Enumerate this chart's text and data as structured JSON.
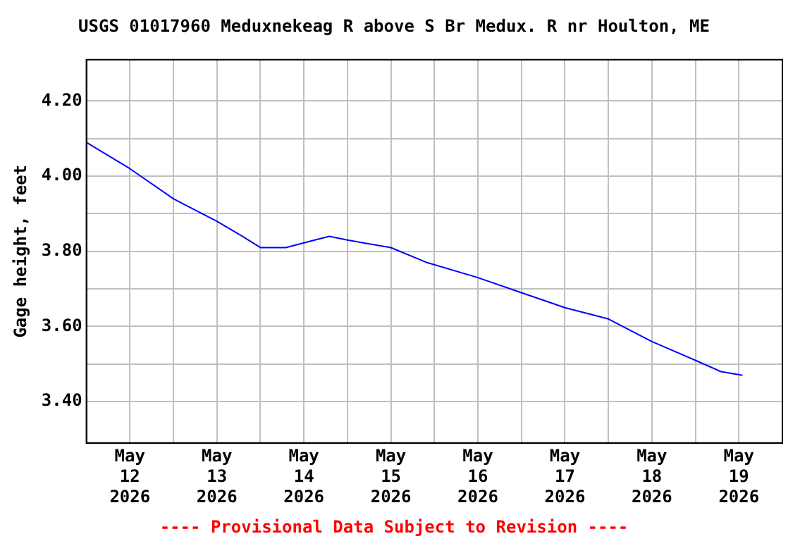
{
  "chart_data": {
    "type": "line",
    "title": "USGS 01017960 Meduxnekeag R above S Br Medux. R nr Houlton, ME",
    "ylabel": "Gage height, feet",
    "annotations": [
      "---- Provisional Data Subject to Revision ----"
    ],
    "x": [
      "2026-05-11T12:00",
      "2026-05-12",
      "2026-05-12T12:00",
      "2026-05-13",
      "2026-05-13T07:00",
      "2026-05-13T12:00",
      "2026-05-13T19:00",
      "2026-05-14T03:00",
      "2026-05-14T07:00",
      "2026-05-14T12:00",
      "2026-05-15",
      "2026-05-15T10:00",
      "2026-05-16",
      "2026-05-16T12:00",
      "2026-05-17",
      "2026-05-17T12:00",
      "2026-05-18",
      "2026-05-18T12:00",
      "2026-05-18T19:00",
      "2026-05-19T01:00"
    ],
    "series": [
      {
        "color": "#0000ff",
        "values": [
          4.09,
          4.02,
          3.94,
          3.88,
          3.84,
          3.81,
          3.81,
          3.83,
          3.84,
          3.83,
          3.81,
          3.77,
          3.73,
          3.69,
          3.65,
          3.62,
          3.56,
          3.51,
          3.48,
          3.47
        ]
      }
    ],
    "xlim": [
      "2026-05-11T12:00",
      "2026-05-19T12:00"
    ],
    "xticks": [
      {
        "value": "2026-05-12",
        "label": "May 12 2026"
      },
      {
        "value": "2026-05-12T12:00",
        "label": null
      },
      {
        "value": "2026-05-13",
        "label": "May 13 2026"
      },
      {
        "value": "2026-05-13T12:00",
        "label": null
      },
      {
        "value": "2026-05-14",
        "label": "May 14 2026"
      },
      {
        "value": "2026-05-14T12:00",
        "label": null
      },
      {
        "value": "2026-05-15",
        "label": "May 15 2026"
      },
      {
        "value": "2026-05-15T12:00",
        "label": null
      },
      {
        "value": "2026-05-16",
        "label": "May 16 2026"
      },
      {
        "value": "2026-05-16T12:00",
        "label": null
      },
      {
        "value": "2026-05-17",
        "label": "May 17 2026"
      },
      {
        "value": "2026-05-17T12:00",
        "label": null
      },
      {
        "value": "2026-05-18",
        "label": "May 18 2026"
      },
      {
        "value": "2026-05-18T12:00",
        "label": null
      },
      {
        "value": "2026-05-19",
        "label": "May 19 2026"
      }
    ],
    "ylim": [
      3.29,
      4.31
    ],
    "yticks": [
      {
        "value": 3.4,
        "label": "3.40"
      },
      {
        "value": 3.5,
        "label": null
      },
      {
        "value": 3.6,
        "label": "3.60"
      },
      {
        "value": 3.7,
        "label": null
      },
      {
        "value": 3.8,
        "label": "3.80"
      },
      {
        "value": 3.9,
        "label": null
      },
      {
        "value": 4.0,
        "label": "4.00"
      },
      {
        "value": 4.1,
        "label": null
      },
      {
        "value": 4.2,
        "label": "4.20"
      }
    ],
    "grid": true,
    "marker": "none",
    "line_style": "solid",
    "legend": false
  }
}
